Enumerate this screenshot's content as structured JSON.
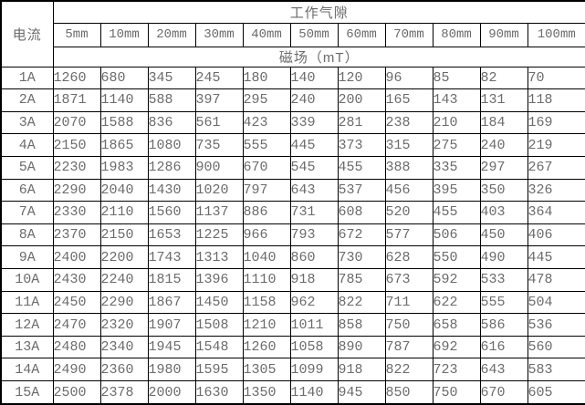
{
  "table": {
    "current_label": "电流",
    "air_gap_label": "工作气隙",
    "field_label": "磁场（mT）",
    "gap_columns": [
      "5mm",
      "10mm",
      "20mm",
      "30mm",
      "40mm",
      "50mm",
      "60mm",
      "70mm",
      "80mm",
      "90mm",
      "100mm"
    ],
    "rows": [
      {
        "current": "1A",
        "values": [
          1260,
          680,
          345,
          245,
          180,
          140,
          120,
          96,
          85,
          82,
          70
        ]
      },
      {
        "current": "2A",
        "values": [
          1871,
          1140,
          588,
          397,
          295,
          240,
          200,
          165,
          143,
          131,
          118
        ]
      },
      {
        "current": "3A",
        "values": [
          2070,
          1588,
          836,
          561,
          423,
          339,
          281,
          238,
          210,
          184,
          169
        ]
      },
      {
        "current": "4A",
        "values": [
          2150,
          1865,
          1080,
          735,
          555,
          445,
          373,
          315,
          275,
          240,
          219
        ]
      },
      {
        "current": "5A",
        "values": [
          2230,
          1983,
          1286,
          900,
          670,
          545,
          455,
          388,
          335,
          297,
          267
        ]
      },
      {
        "current": "6A",
        "values": [
          2290,
          2040,
          1430,
          1020,
          797,
          643,
          537,
          456,
          395,
          350,
          326
        ]
      },
      {
        "current": "7A",
        "values": [
          2330,
          2110,
          1560,
          1137,
          886,
          731,
          608,
          520,
          455,
          403,
          364
        ]
      },
      {
        "current": "8A",
        "values": [
          2370,
          2150,
          1653,
          1225,
          966,
          793,
          672,
          577,
          506,
          450,
          406
        ]
      },
      {
        "current": "9A",
        "values": [
          2400,
          2200,
          1743,
          1313,
          1040,
          860,
          730,
          628,
          550,
          490,
          445
        ]
      },
      {
        "current": "10A",
        "values": [
          2430,
          2240,
          1815,
          1396,
          1110,
          918,
          785,
          673,
          592,
          533,
          478
        ]
      },
      {
        "current": "11A",
        "values": [
          2450,
          2290,
          1867,
          1450,
          1158,
          962,
          822,
          711,
          622,
          555,
          504
        ]
      },
      {
        "current": "12A",
        "values": [
          2470,
          2320,
          1907,
          1508,
          1210,
          1011,
          858,
          750,
          658,
          586,
          536
        ]
      },
      {
        "current": "13A",
        "values": [
          2480,
          2340,
          1945,
          1548,
          1260,
          1058,
          890,
          787,
          692,
          616,
          560
        ]
      },
      {
        "current": "14A",
        "values": [
          2490,
          2360,
          1980,
          1595,
          1305,
          1099,
          918,
          822,
          723,
          643,
          583
        ]
      },
      {
        "current": "15A",
        "values": [
          2500,
          2378,
          2000,
          1630,
          1350,
          1140,
          945,
          850,
          750,
          670,
          605
        ]
      }
    ]
  },
  "colors": {
    "text": "#6b6b6b",
    "border": "#000000",
    "background": "#ffffff"
  }
}
